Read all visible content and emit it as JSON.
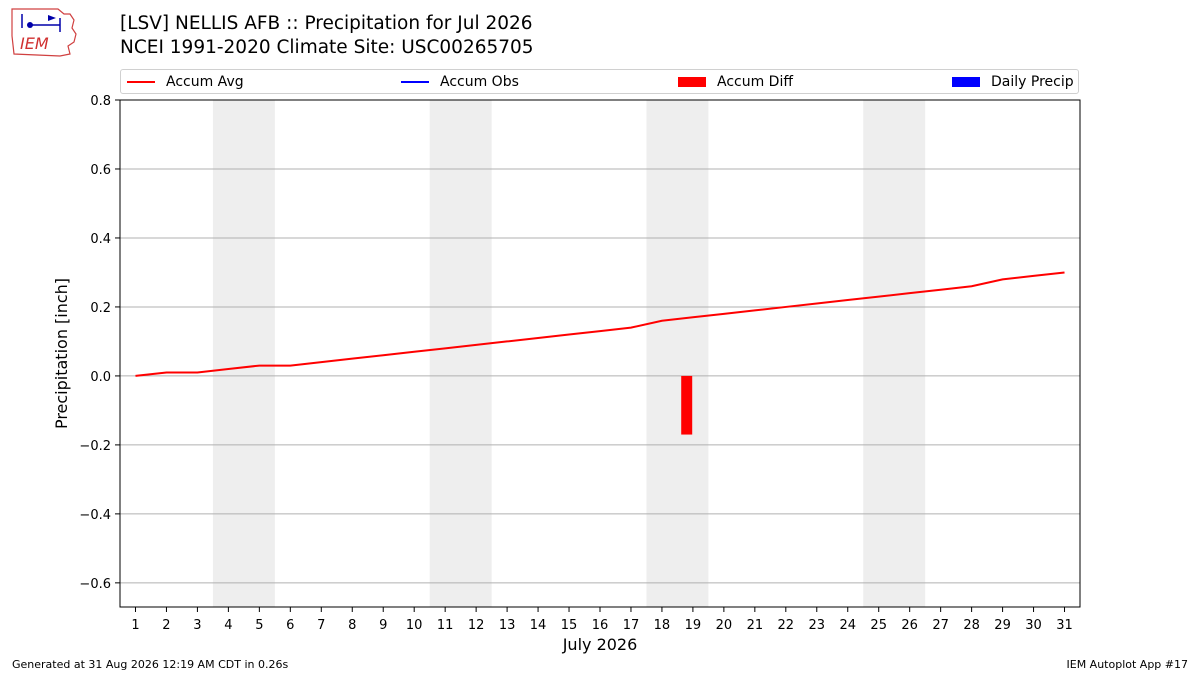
{
  "header": {
    "title_line1": "[LSV] NELLIS AFB :: Precipitation for Jul 2026",
    "title_line2": "NCEI 1991-2020 Climate Site: USC00265705"
  },
  "logo": {
    "text": "IEM",
    "icon": "iem-logo-icon"
  },
  "legend": {
    "placement": "top",
    "items": [
      {
        "label": "Accum Avg",
        "color": "#ff0000",
        "kind": "line"
      },
      {
        "label": "Accum Obs",
        "color": "#0000ff",
        "kind": "line"
      },
      {
        "label": "Accum Diff",
        "color": "#ff0000",
        "kind": "patch"
      },
      {
        "label": "Daily Precip",
        "color": "#0000ff",
        "kind": "patch"
      }
    ]
  },
  "footer": {
    "left": "Generated at 31 Aug 2026 12:19 AM CDT in 0.26s",
    "right": "IEM Autoplot App #17"
  },
  "chart_data": {
    "type": "line",
    "xlabel": "July 2026",
    "ylabel": "Precipitation [inch]",
    "xlim": [
      0.5,
      31.5
    ],
    "ylim": [
      -0.67,
      0.8
    ],
    "yticks": [
      0.8,
      0.6,
      0.4,
      0.2,
      0.0,
      -0.2,
      -0.4,
      -0.6
    ],
    "ytick_labels": [
      "0.8",
      "0.6",
      "0.4",
      "0.2",
      "0.0",
      "−0.2",
      "−0.4",
      "−0.6"
    ],
    "x": [
      1,
      2,
      3,
      4,
      5,
      6,
      7,
      8,
      9,
      10,
      11,
      12,
      13,
      14,
      15,
      16,
      17,
      18,
      19,
      20,
      21,
      22,
      23,
      24,
      25,
      26,
      27,
      28,
      29,
      30,
      31
    ],
    "xtick_labels": [
      "1",
      "2",
      "3",
      "4",
      "5",
      "6",
      "7",
      "8",
      "9",
      "10",
      "11",
      "12",
      "13",
      "14",
      "15",
      "16",
      "17",
      "18",
      "19",
      "20",
      "21",
      "22",
      "23",
      "24",
      "25",
      "26",
      "27",
      "28",
      "29",
      "30",
      "31"
    ],
    "grid": "y",
    "weekend_shading": [
      [
        3.5,
        5.5
      ],
      [
        10.5,
        12.5
      ],
      [
        17.5,
        19.5
      ],
      [
        24.5,
        26.5
      ]
    ],
    "series": [
      {
        "name": "Accum Avg",
        "type": "line",
        "color": "#ff0000",
        "values": [
          0.0,
          0.01,
          0.01,
          0.02,
          0.03,
          0.03,
          0.04,
          0.05,
          0.06,
          0.07,
          0.08,
          0.09,
          0.1,
          0.11,
          0.12,
          0.13,
          0.14,
          0.16,
          0.17,
          0.18,
          0.19,
          0.2,
          0.21,
          0.22,
          0.23,
          0.24,
          0.25,
          0.26,
          0.28,
          0.29,
          0.3
        ]
      },
      {
        "name": "Accum Diff",
        "type": "bar",
        "color": "#ff0000",
        "points": [
          {
            "x": 18.8,
            "value": -0.17
          }
        ]
      }
    ]
  }
}
